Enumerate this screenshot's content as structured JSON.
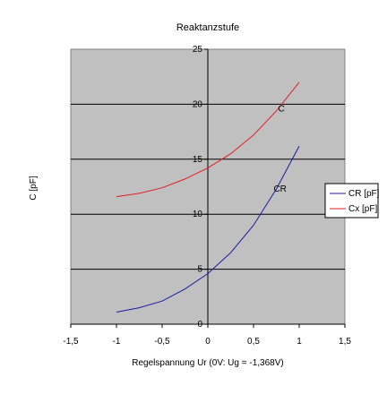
{
  "chart_data": {
    "type": "line",
    "title": "Reaktanzstufe",
    "xlabel": "Regelspannung Ur (0V: Ug = -1,368V)",
    "ylabel": "C  [pF]",
    "xlim": [
      -1.5,
      1.5
    ],
    "ylim": [
      0,
      25
    ],
    "x_ticks": [
      "-1,5",
      "-1",
      "-0,5",
      "0",
      "0,5",
      "1",
      "1,5"
    ],
    "y_ticks": [
      "0",
      "5",
      "10",
      "15",
      "20",
      "25"
    ],
    "grid": "horizontal",
    "plot_background": "#c0c0c0",
    "legend_position": "right",
    "series": [
      {
        "name": "CR [pF]",
        "color": "#1a1aa0",
        "x": [
          -1.0,
          -0.75,
          -0.5,
          -0.25,
          0.0,
          0.25,
          0.5,
          0.75,
          1.0
        ],
        "y": [
          1.1,
          1.5,
          2.1,
          3.2,
          4.6,
          6.5,
          9.0,
          12.3,
          16.2
        ],
        "label": "CR",
        "label_at": [
          0.72,
          12.3
        ]
      },
      {
        "name": "Cx [pF]",
        "color": "#e02020",
        "x": [
          -1.0,
          -0.75,
          -0.5,
          -0.25,
          0.0,
          0.25,
          0.5,
          0.75,
          1.0
        ],
        "y": [
          11.6,
          11.9,
          12.4,
          13.2,
          14.2,
          15.5,
          17.2,
          19.4,
          22.0
        ],
        "label": "C",
        "label_at": [
          0.77,
          19.6
        ]
      }
    ]
  }
}
